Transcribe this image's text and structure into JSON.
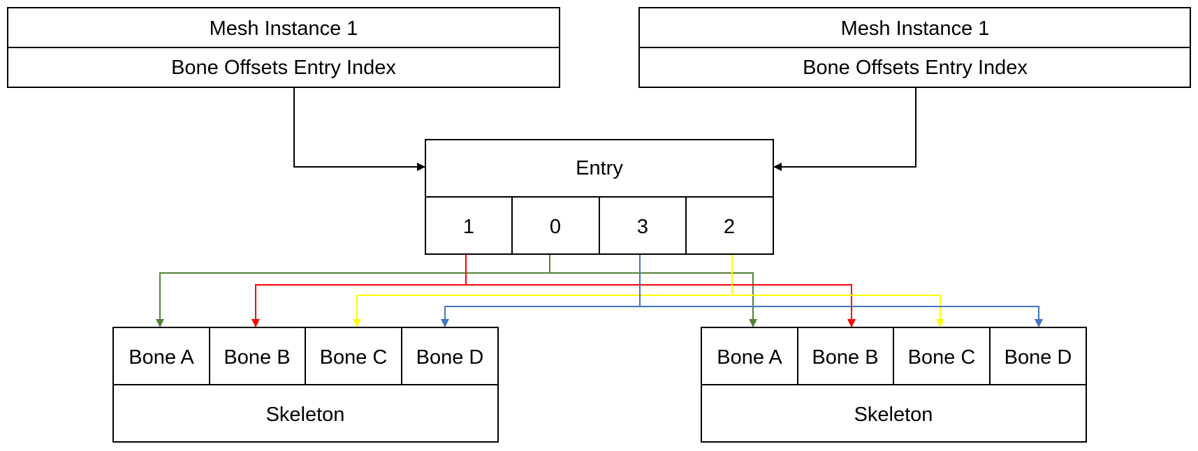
{
  "mesh_instances": [
    {
      "title": "Mesh Instance 1",
      "subtitle": "Bone Offsets Entry Index"
    },
    {
      "title": "Mesh Instance 1",
      "subtitle": "Bone Offsets Entry Index"
    }
  ],
  "entry": {
    "title": "Entry",
    "indices": [
      "1",
      "0",
      "3",
      "2"
    ]
  },
  "skeletons": [
    {
      "bones": [
        "Bone A",
        "Bone B",
        "Bone C",
        "Bone D"
      ],
      "label": "Skeleton"
    },
    {
      "bones": [
        "Bone A",
        "Bone B",
        "Bone C",
        "Bone D"
      ],
      "label": "Skeleton"
    }
  ],
  "colors": {
    "line": "#000000",
    "bone_a": "#548235",
    "bone_b": "#ff0000",
    "bone_c": "#ffff00",
    "bone_d": "#4472c4"
  }
}
